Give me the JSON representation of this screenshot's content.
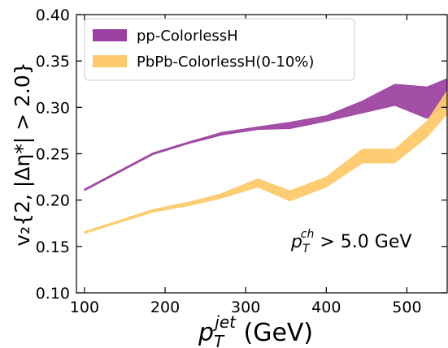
{
  "chart_data": {
    "type": "area",
    "x_label_main": "p",
    "x_label_sub": "T",
    "x_label_sup": "jet",
    "x_label_unit": " (GeV)",
    "y_label": "v₂{2, |Δη*| > 2.0}",
    "xlim": [
      90,
      550
    ],
    "ylim": [
      0.1,
      0.4
    ],
    "x_ticks": [
      100,
      200,
      300,
      400,
      500
    ],
    "x_tick_labels": [
      "100",
      "200",
      "300",
      "400",
      "500"
    ],
    "y_ticks": [
      0.1,
      0.15,
      0.2,
      0.25,
      0.3,
      0.35,
      0.4
    ],
    "y_tick_labels": [
      "0.10",
      "0.15",
      "0.20",
      "0.25",
      "0.30",
      "0.35",
      "0.40"
    ],
    "annotation": {
      "main": "p",
      "sub": "T",
      "sup": "ch",
      "rest": " > 5.0 GeV"
    },
    "legend_position": "top-left",
    "series": [
      {
        "name": "pp-ColorlessH",
        "color": "#9b3fa0",
        "x": [
          100,
          185,
          230,
          270,
          315,
          355,
          400,
          445,
          485,
          525,
          550
        ],
        "lower": [
          0.21,
          0.249,
          0.261,
          0.27,
          0.276,
          0.277,
          0.285,
          0.294,
          0.302,
          0.288,
          0.303
        ],
        "upper": [
          0.212,
          0.251,
          0.263,
          0.273,
          0.279,
          0.284,
          0.291,
          0.307,
          0.325,
          0.322,
          0.331
        ]
      },
      {
        "name": "PbPb-ColorlessH(0-10%)",
        "color": "#fdc96b",
        "x": [
          100,
          185,
          230,
          270,
          315,
          355,
          400,
          445,
          485,
          525,
          550
        ],
        "lower": [
          0.164,
          0.187,
          0.194,
          0.202,
          0.214,
          0.199,
          0.214,
          0.24,
          0.24,
          0.268,
          0.293
        ],
        "upper": [
          0.166,
          0.19,
          0.198,
          0.207,
          0.223,
          0.21,
          0.225,
          0.255,
          0.255,
          0.285,
          0.318
        ]
      }
    ]
  }
}
